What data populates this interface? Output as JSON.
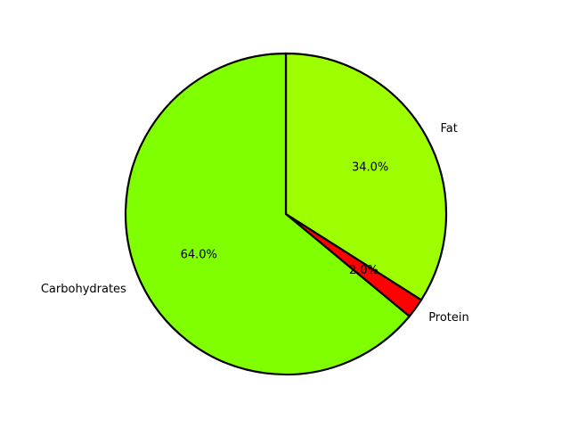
{
  "chart_data": {
    "type": "pie",
    "categories": [
      "Fat",
      "Protein",
      "Carbohydrates"
    ],
    "values": [
      34.0,
      2.0,
      64.0
    ],
    "percent_labels": [
      "34.0%",
      "2.0%",
      "64.0%"
    ],
    "colors": [
      "#9EFF00",
      "#FF0000",
      "#80FF00"
    ],
    "start_angle": 90,
    "direction": "clockwise",
    "edge_color": "#000000",
    "title": "",
    "legend": false
  }
}
